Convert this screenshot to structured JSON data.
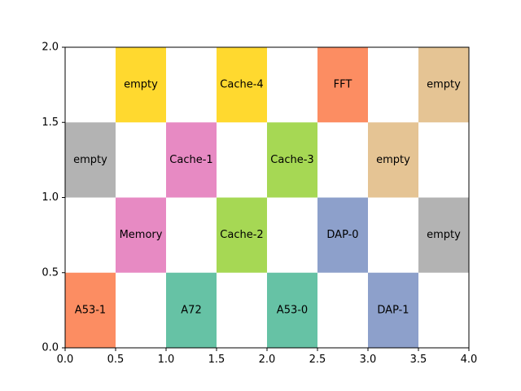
{
  "chart_data": {
    "type": "heatmap",
    "title": "",
    "xlabel": "",
    "ylabel": "",
    "xlim": [
      0,
      4.0
    ],
    "ylim": [
      0,
      2.0
    ],
    "grid": false,
    "x_ticks": [
      "0.0",
      "0.5",
      "1.0",
      "1.5",
      "2.0",
      "2.5",
      "3.0",
      "3.5",
      "4.0"
    ],
    "y_ticks": [
      "0.0",
      "0.5",
      "1.0",
      "1.5",
      "2.0"
    ],
    "cells": [
      {
        "x0": 0.0,
        "y0": 0.0,
        "label": "A53-1",
        "color": "#fc8d62"
      },
      {
        "x0": 1.0,
        "y0": 0.0,
        "label": "A72",
        "color": "#66c2a5"
      },
      {
        "x0": 2.0,
        "y0": 0.0,
        "label": "A53-0",
        "color": "#66c2a5"
      },
      {
        "x0": 3.0,
        "y0": 0.0,
        "label": "DAP-1",
        "color": "#8da0cb"
      },
      {
        "x0": 0.5,
        "y0": 0.5,
        "label": "Memory",
        "color": "#e78ac3"
      },
      {
        "x0": 1.5,
        "y0": 0.5,
        "label": "Cache-2",
        "color": "#a6d854"
      },
      {
        "x0": 2.5,
        "y0": 0.5,
        "label": "DAP-0",
        "color": "#8da0cb"
      },
      {
        "x0": 3.5,
        "y0": 0.5,
        "label": "empty",
        "color": "#b3b3b3"
      },
      {
        "x0": 0.0,
        "y0": 1.0,
        "label": "empty",
        "color": "#b3b3b3"
      },
      {
        "x0": 1.0,
        "y0": 1.0,
        "label": "Cache-1",
        "color": "#e78ac3"
      },
      {
        "x0": 2.0,
        "y0": 1.0,
        "label": "Cache-3",
        "color": "#a6d854"
      },
      {
        "x0": 3.0,
        "y0": 1.0,
        "label": "empty",
        "color": "#e5c494"
      },
      {
        "x0": 0.5,
        "y0": 1.5,
        "label": "empty",
        "color": "#ffd92f"
      },
      {
        "x0": 1.5,
        "y0": 1.5,
        "label": "Cache-4",
        "color": "#ffd92f"
      },
      {
        "x0": 2.5,
        "y0": 1.5,
        "label": "FFT",
        "color": "#fc8d62"
      },
      {
        "x0": 3.5,
        "y0": 1.5,
        "label": "empty",
        "color": "#e5c494"
      }
    ],
    "cell_size": [
      0.5,
      0.5
    ]
  }
}
